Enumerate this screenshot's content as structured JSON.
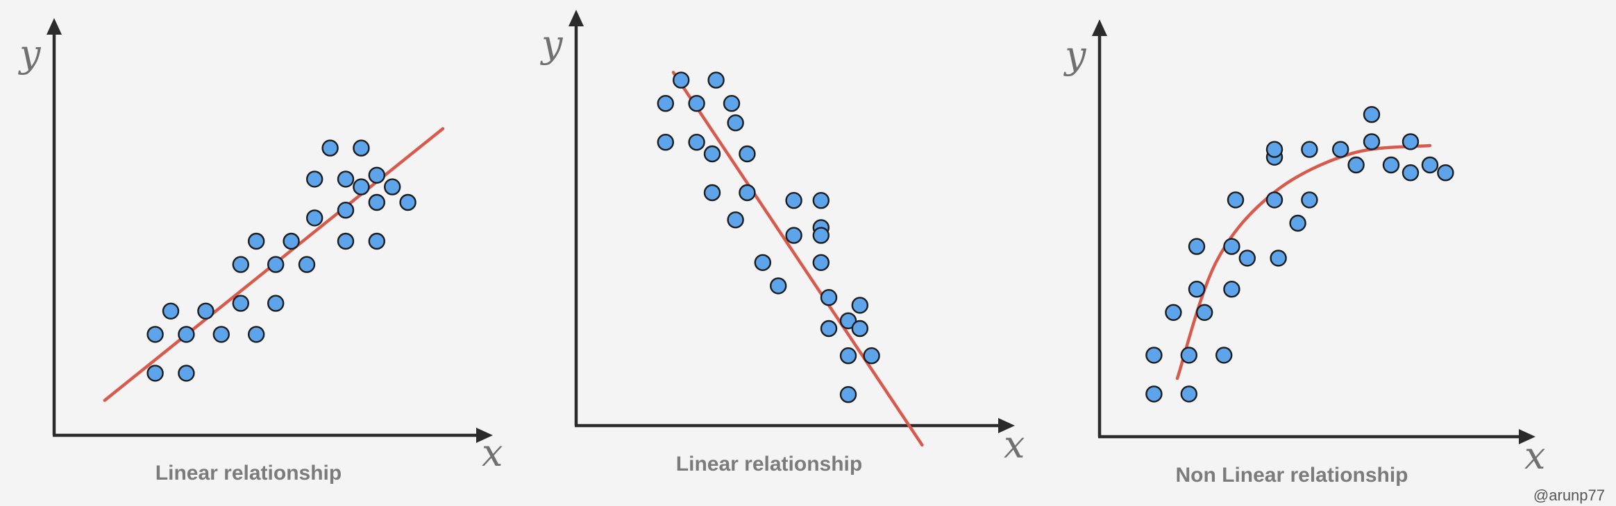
{
  "chart_data": [
    {
      "type": "scatter",
      "title": "",
      "caption": "Linear relationship",
      "xlabel": "x",
      "ylabel": "y",
      "xlim": [
        0,
        10
      ],
      "ylim": [
        0,
        10
      ],
      "points": [
        [
          2.6,
          1.6
        ],
        [
          3.4,
          1.6
        ],
        [
          2.6,
          2.6
        ],
        [
          3.0,
          3.2
        ],
        [
          3.4,
          2.6
        ],
        [
          3.9,
          3.2
        ],
        [
          4.3,
          2.6
        ],
        [
          4.8,
          3.4
        ],
        [
          4.8,
          4.4
        ],
        [
          5.2,
          2.6
        ],
        [
          5.2,
          5.0
        ],
        [
          5.7,
          3.4
        ],
        [
          5.7,
          4.4
        ],
        [
          6.1,
          5.0
        ],
        [
          6.5,
          4.4
        ],
        [
          6.7,
          5.6
        ],
        [
          6.7,
          6.6
        ],
        [
          7.1,
          7.4
        ],
        [
          7.5,
          5.0
        ],
        [
          7.5,
          5.8
        ],
        [
          7.5,
          6.6
        ],
        [
          7.9,
          6.4
        ],
        [
          7.9,
          7.4
        ],
        [
          8.3,
          5.0
        ],
        [
          8.3,
          6.0
        ],
        [
          8.3,
          6.7
        ],
        [
          8.7,
          6.4
        ],
        [
          9.1,
          6.0
        ]
      ],
      "trendline": [
        [
          1.3,
          0.9
        ],
        [
          10.0,
          7.9
        ]
      ]
    },
    {
      "type": "scatter",
      "title": "",
      "caption": "Linear relationship",
      "xlabel": "x",
      "ylabel": "y",
      "xlim": [
        0,
        10
      ],
      "ylim": [
        0,
        10
      ],
      "points": [
        [
          2.3,
          8.3
        ],
        [
          2.7,
          8.9
        ],
        [
          3.6,
          8.9
        ],
        [
          2.3,
          7.3
        ],
        [
          3.1,
          8.3
        ],
        [
          3.1,
          7.3
        ],
        [
          3.5,
          7.0
        ],
        [
          4.0,
          8.3
        ],
        [
          3.5,
          6.0
        ],
        [
          4.1,
          7.8
        ],
        [
          4.4,
          7.0
        ],
        [
          4.4,
          6.0
        ],
        [
          4.1,
          5.3
        ],
        [
          4.8,
          4.2
        ],
        [
          5.6,
          5.8
        ],
        [
          5.2,
          3.6
        ],
        [
          5.6,
          4.9
        ],
        [
          6.3,
          5.8
        ],
        [
          6.3,
          5.1
        ],
        [
          6.3,
          4.9
        ],
        [
          6.3,
          4.2
        ],
        [
          6.5,
          3.3
        ],
        [
          6.5,
          2.5
        ],
        [
          7.0,
          2.7
        ],
        [
          7.3,
          3.1
        ],
        [
          7.3,
          2.5
        ],
        [
          7.0,
          1.8
        ],
        [
          7.6,
          1.8
        ],
        [
          7.0,
          0.8
        ]
      ],
      "trendline": [
        [
          2.5,
          9.1
        ],
        [
          8.9,
          -0.5
        ]
      ]
    },
    {
      "type": "scatter",
      "title": "",
      "caption": "Non Linear relationship",
      "xlabel": "x",
      "ylabel": "y",
      "xlim": [
        0,
        10
      ],
      "ylim": [
        0,
        10
      ],
      "points": [
        [
          1.4,
          1.1
        ],
        [
          2.3,
          1.1
        ],
        [
          1.4,
          2.1
        ],
        [
          1.9,
          3.2
        ],
        [
          2.3,
          2.1
        ],
        [
          2.5,
          4.9
        ],
        [
          2.5,
          3.8
        ],
        [
          2.7,
          3.2
        ],
        [
          3.2,
          2.1
        ],
        [
          3.4,
          3.8
        ],
        [
          3.4,
          4.9
        ],
        [
          3.5,
          6.1
        ],
        [
          3.8,
          4.6
        ],
        [
          4.5,
          6.1
        ],
        [
          4.5,
          7.2
        ],
        [
          4.5,
          7.4
        ],
        [
          4.6,
          4.6
        ],
        [
          5.1,
          5.5
        ],
        [
          5.4,
          6.1
        ],
        [
          5.4,
          7.4
        ],
        [
          6.2,
          7.4
        ],
        [
          6.6,
          7.0
        ],
        [
          7.0,
          8.3
        ],
        [
          7.0,
          7.6
        ],
        [
          7.5,
          7.0
        ],
        [
          8.0,
          7.6
        ],
        [
          8.0,
          6.8
        ],
        [
          8.5,
          7.0
        ],
        [
          8.9,
          6.8
        ]
      ],
      "trendline": [
        [
          2.0,
          1.5
        ],
        [
          3.0,
          4.5
        ],
        [
          4.5,
          6.3
        ],
        [
          6.5,
          7.3
        ],
        [
          8.5,
          7.5
        ]
      ]
    }
  ],
  "colors": {
    "point_fill": "#5ea4ea",
    "point_stroke": "#1c1c1c",
    "trendline": "#d85a4c",
    "axis": "#2b2b2b",
    "axis_letters": "#707070",
    "caption": "#7b7b7b",
    "background": "#f4f4f4"
  },
  "credit": "@arunp77"
}
